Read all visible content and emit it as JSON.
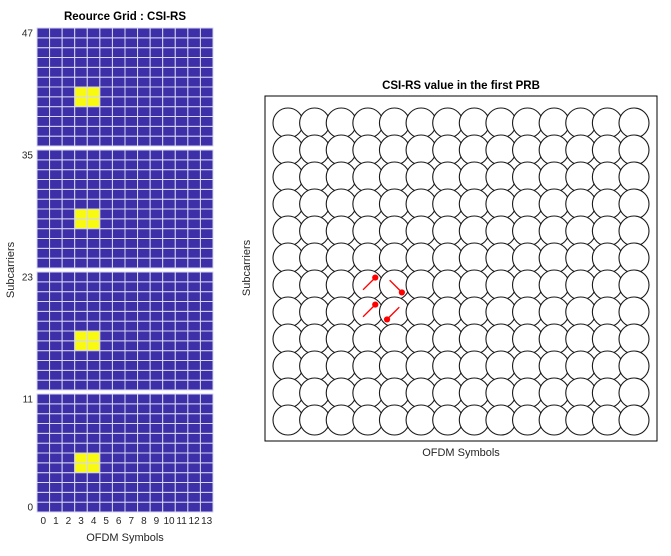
{
  "figure": {
    "background": "#ffffff"
  },
  "chart_data": [
    {
      "type": "heatmap",
      "title": "Reource Grid : CSI-RS",
      "xlabel": "OFDM Symbols",
      "ylabel": "Subcarriers",
      "x_ticks": [
        "0",
        "1",
        "2",
        "3",
        "4",
        "5",
        "6",
        "7",
        "8",
        "9",
        "10",
        "11",
        "12",
        "13"
      ],
      "y_ticks": [
        "47",
        "35",
        "23",
        "11",
        "0"
      ],
      "n_symbols": 14,
      "n_subcarriers": 48,
      "subcarriers_per_prb": 12,
      "n_prbs": 4,
      "csirs_symbols": [
        3,
        4
      ],
      "csirs_subcarriers": [
        4,
        5,
        16,
        17,
        28,
        29,
        40,
        41
      ],
      "colors": {
        "cell": "#3C2FA8",
        "csirs_cell": "#F8FA12",
        "gridline": "#D6D6EF",
        "prb_separator": "#FFFFFF"
      }
    },
    {
      "type": "scatter",
      "title": "CSI-RS value in the first PRB",
      "xlabel": "OFDM Symbols",
      "ylabel": "Subcarriers",
      "n_symbols": 14,
      "n_subcarriers": 12,
      "marker": "circle-outline",
      "arrows": [
        {
          "symbol": 3,
          "subcarrier": 5,
          "phase_deg": 45
        },
        {
          "symbol": 4,
          "subcarrier": 5,
          "phase_deg": -45
        },
        {
          "symbol": 3,
          "subcarrier": 4,
          "phase_deg": 45
        },
        {
          "symbol": 4,
          "subcarrier": 4,
          "phase_deg": 225
        }
      ],
      "colors": {
        "circle_stroke": "#1A1A1A",
        "circle_fill": "#FFFFFF",
        "arrow": "#FF0000",
        "box": "#000000"
      }
    }
  ]
}
